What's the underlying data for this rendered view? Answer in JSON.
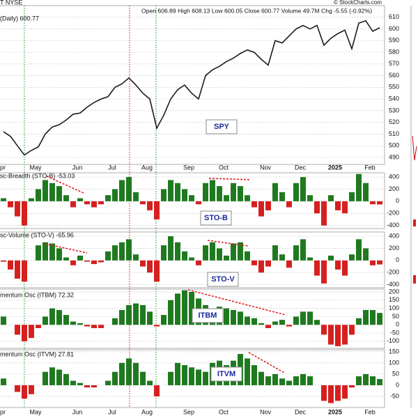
{
  "header": {
    "symbol": "T NYSE",
    "quote": "Open 606.89 High 608.13 Low 600.05 Close 600.77 Volume 49.7M Chg -5.55 (-0.92%)",
    "source": "© StockCharts.com"
  },
  "chart_data": [
    {
      "type": "line",
      "title": "(Daily) 600.77",
      "label": "SPY",
      "color": "#1a1a1a",
      "categories": [
        "Apr",
        null,
        null,
        null,
        null,
        "May",
        null,
        null,
        null,
        null,
        null,
        "Jun",
        null,
        null,
        null,
        null,
        "Jul",
        null,
        null,
        null,
        null,
        "Aug",
        null,
        null,
        null,
        null,
        null,
        "Sep",
        null,
        null,
        null,
        null,
        "Oct",
        null,
        null,
        null,
        null,
        null,
        "Nov",
        null,
        null,
        null,
        null,
        "Dec",
        null,
        null,
        null,
        null,
        "2025",
        null,
        null,
        null,
        null,
        "Feb",
        null
      ],
      "values": [
        512,
        508,
        500,
        492,
        496,
        499,
        510,
        516,
        518,
        522,
        527,
        528,
        533,
        537,
        540,
        542,
        550,
        553,
        558,
        552,
        545,
        540,
        515,
        526,
        540,
        548,
        552,
        545,
        540,
        560,
        565,
        568,
        572,
        575,
        579,
        582,
        580,
        574,
        569,
        590,
        588,
        594,
        600,
        603,
        600,
        603,
        586,
        592,
        596,
        599,
        583,
        605,
        607,
        598,
        601
      ],
      "ylim": [
        484,
        620
      ],
      "yticks": [
        490,
        500,
        510,
        520,
        530,
        540,
        550,
        560,
        570,
        580,
        590,
        600,
        610
      ],
      "grid": true
    },
    {
      "type": "bar",
      "title": "sc-Breadth (STO-B) -53.03",
      "label": "STO-B",
      "colors": {
        "positive": "#1f7a1f",
        "negative": "#d62020"
      },
      "categories": [
        "Apr",
        null,
        null,
        null,
        null,
        "May",
        null,
        null,
        null,
        null,
        null,
        "Jun",
        null,
        null,
        null,
        null,
        "Jul",
        null,
        null,
        null,
        null,
        "Aug",
        null,
        null,
        null,
        null,
        null,
        "Sep",
        null,
        null,
        null,
        null,
        "Oct",
        null,
        null,
        null,
        null,
        null,
        "Nov",
        null,
        null,
        null,
        null,
        "Dec",
        null,
        null,
        null,
        null,
        "2025",
        null,
        null,
        null,
        null,
        "Feb",
        null
      ],
      "values": [
        50,
        -100,
        -250,
        -400,
        50,
        200,
        350,
        300,
        250,
        100,
        -100,
        50,
        -50,
        -100,
        -50,
        100,
        200,
        350,
        400,
        150,
        -50,
        -150,
        -300,
        200,
        350,
        300,
        200,
        100,
        -50,
        300,
        350,
        250,
        100,
        300,
        250,
        100,
        -100,
        -250,
        -150,
        300,
        150,
        -100,
        300,
        400,
        100,
        -200,
        -400,
        100,
        -150,
        -200,
        150,
        450,
        300,
        -50,
        -53.03
      ],
      "ylim": [
        -450,
        470
      ],
      "yticks": [
        -400,
        -200,
        0,
        200,
        400
      ],
      "grid": true
    },
    {
      "type": "bar",
      "title": "sc-Volume (STO-V) -65.96",
      "label": "STO-V",
      "colors": {
        "positive": "#1f7a1f",
        "negative": "#d62020"
      },
      "categories": [
        "Apr",
        null,
        null,
        null,
        null,
        "May",
        null,
        null,
        null,
        null,
        null,
        "Jun",
        null,
        null,
        null,
        null,
        "Jul",
        null,
        null,
        null,
        null,
        "Aug",
        null,
        null,
        null,
        null,
        null,
        "Sep",
        null,
        null,
        null,
        null,
        "Oct",
        null,
        null,
        null,
        null,
        null,
        "Nov",
        null,
        null,
        null,
        null,
        "Dec",
        null,
        null,
        null,
        null,
        "2025",
        null,
        null,
        null,
        null,
        "Feb",
        null
      ],
      "values": [
        -20,
        -150,
        -300,
        -350,
        0,
        250,
        300,
        280,
        200,
        50,
        -80,
        80,
        -20,
        -60,
        -30,
        150,
        250,
        300,
        350,
        100,
        -100,
        -200,
        -350,
        250,
        400,
        300,
        150,
        50,
        -80,
        250,
        300,
        200,
        80,
        280,
        300,
        150,
        -80,
        -200,
        -100,
        250,
        100,
        -120,
        250,
        350,
        50,
        -250,
        -380,
        80,
        -150,
        -250,
        100,
        350,
        200,
        -80,
        -65.96
      ],
      "ylim": [
        -450,
        470
      ],
      "yticks": [
        -400,
        -200,
        0,
        200,
        400
      ],
      "grid": true
    },
    {
      "type": "bar",
      "title": "mentum Osc (ITBM) 72.32",
      "label": "ITBM",
      "colors": {
        "positive": "#1f7a1f",
        "negative": "#d62020"
      },
      "categories": [
        "Apr",
        null,
        null,
        null,
        null,
        "May",
        null,
        null,
        null,
        null,
        null,
        "Jun",
        null,
        null,
        null,
        null,
        "Jul",
        null,
        null,
        null,
        null,
        "Aug",
        null,
        null,
        null,
        null,
        null,
        "Sep",
        null,
        null,
        null,
        null,
        "Oct",
        null,
        null,
        null,
        null,
        null,
        "Nov",
        null,
        null,
        null,
        null,
        "Dec",
        null,
        null,
        null,
        null,
        "2025",
        null,
        null,
        null,
        null,
        "Feb",
        null
      ],
      "values": [
        50,
        0,
        -60,
        -100,
        -80,
        -20,
        50,
        100,
        90,
        60,
        20,
        10,
        -10,
        -20,
        -20,
        0,
        40,
        90,
        120,
        130,
        120,
        80,
        -10,
        60,
        150,
        190,
        210,
        200,
        160,
        120,
        100,
        110,
        100,
        90,
        80,
        50,
        40,
        10,
        -20,
        20,
        30,
        -10,
        50,
        80,
        80,
        30,
        -60,
        -120,
        -130,
        -120,
        -60,
        40,
        90,
        90,
        72.32
      ],
      "ylim": [
        -143,
        217
      ],
      "yticks": [
        -100,
        -50,
        0,
        50,
        100,
        150,
        200
      ],
      "grid": true
    },
    {
      "type": "bar",
      "title": "mentum Osc (ITVM) 27.81",
      "label": "ITVM",
      "colors": {
        "positive": "#1f7a1f",
        "negative": "#d62020"
      },
      "categories": [
        "Apr",
        null,
        null,
        null,
        null,
        "May",
        null,
        null,
        null,
        null,
        null,
        "Jun",
        null,
        null,
        null,
        null,
        "Jul",
        null,
        null,
        null,
        null,
        "Aug",
        null,
        null,
        null,
        null,
        null,
        "Sep",
        null,
        null,
        null,
        null,
        "Oct",
        null,
        null,
        null,
        null,
        null,
        "Nov",
        null,
        null,
        null,
        null,
        "Dec",
        null,
        null,
        null,
        null,
        "2025",
        null,
        null,
        null,
        null,
        "Feb",
        null
      ],
      "values": [
        30,
        0,
        -30,
        -60,
        -40,
        0,
        60,
        80,
        70,
        50,
        20,
        10,
        -10,
        -10,
        0,
        20,
        60,
        100,
        120,
        100,
        60,
        20,
        -50,
        0,
        60,
        100,
        90,
        80,
        70,
        60,
        100,
        110,
        90,
        110,
        140,
        120,
        90,
        60,
        40,
        50,
        30,
        20,
        40,
        50,
        40,
        0,
        -70,
        -80,
        -70,
        -60,
        -10,
        40,
        50,
        40,
        27.81
      ],
      "ylim": [
        -100,
        159
      ],
      "yticks": [
        -50,
        0,
        50,
        100,
        150
      ],
      "grid": true
    }
  ]
}
